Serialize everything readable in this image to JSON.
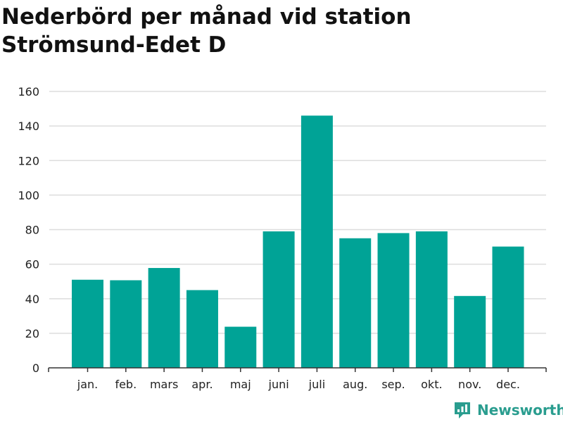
{
  "title": "Nederbörd per månad vid station Strömsund-Edet D",
  "brand": {
    "name": "Newsworthy",
    "icon": "newsworthy-logo-icon",
    "color": "#2a9d8f"
  },
  "colors": {
    "bar": "#00a396",
    "grid": "#dddddd",
    "axis": "#333333"
  },
  "chart_data": {
    "type": "bar",
    "title": "Nederbörd per månad vid station Strömsund-Edet D",
    "xlabel": "",
    "ylabel": "",
    "categories": [
      "jan.",
      "feb.",
      "mars",
      "apr.",
      "maj",
      "juni",
      "juli",
      "aug.",
      "sep.",
      "okt.",
      "nov.",
      "dec."
    ],
    "values": [
      51,
      50.7,
      57.8,
      45,
      23.8,
      79,
      146,
      75,
      78,
      79,
      41.6,
      70.2
    ],
    "ylim": [
      0,
      160
    ],
    "yticks": [
      0,
      20,
      40,
      60,
      80,
      100,
      120,
      140,
      160
    ],
    "grid": true,
    "legend": "none"
  }
}
